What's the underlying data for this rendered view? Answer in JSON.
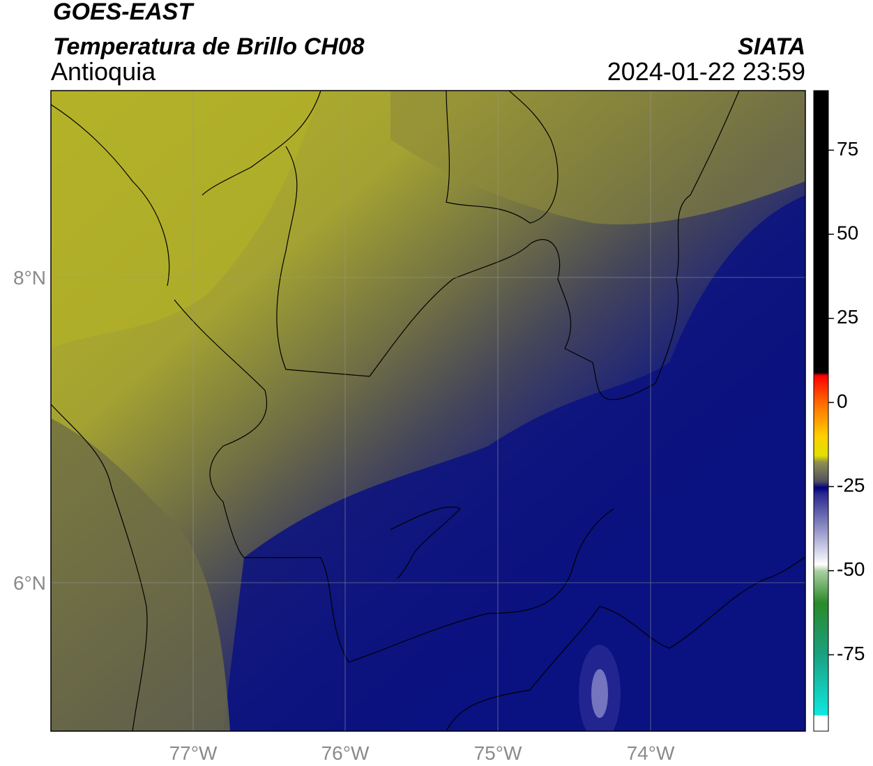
{
  "header": {
    "title": "GOES-EAST",
    "subtitle": "Temperatura de Brillo CH08",
    "region": "Antioquia",
    "source": "SIATA",
    "datetime": "2024-01-22 23:59"
  },
  "map": {
    "lat_ticks": [
      "8°N",
      "6°N"
    ],
    "lon_ticks": [
      "77°W",
      "76°W",
      "75°W",
      "74°W"
    ]
  },
  "colorbar": {
    "clim": [
      -97.7,
      92.7
    ],
    "ticks": [
      75,
      50,
      25,
      0,
      -25,
      -50,
      -75
    ]
  }
}
